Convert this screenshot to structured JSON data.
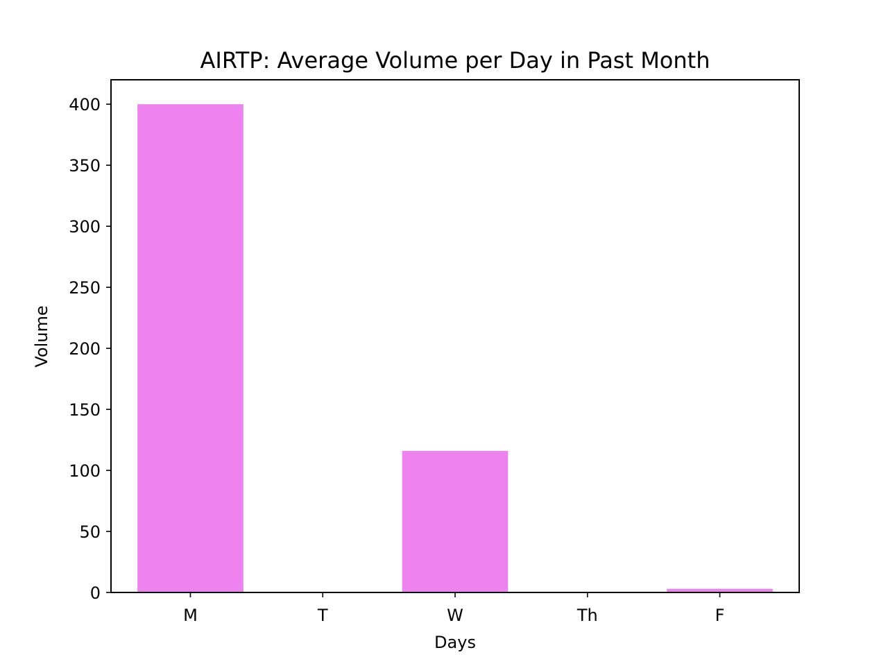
{
  "chart_data": {
    "type": "bar",
    "title": "AIRTP: Average Volume per Day in Past Month",
    "xlabel": "Days",
    "ylabel": "Volume",
    "categories": [
      "M",
      "T",
      "W",
      "Th",
      "F"
    ],
    "values": [
      400,
      0,
      116,
      0,
      3
    ],
    "ylim": [
      0,
      420
    ],
    "yticks": [
      0,
      50,
      100,
      150,
      200,
      250,
      300,
      350,
      400
    ],
    "bar_color": "#ee82ee",
    "grid": false,
    "legend": "none"
  }
}
